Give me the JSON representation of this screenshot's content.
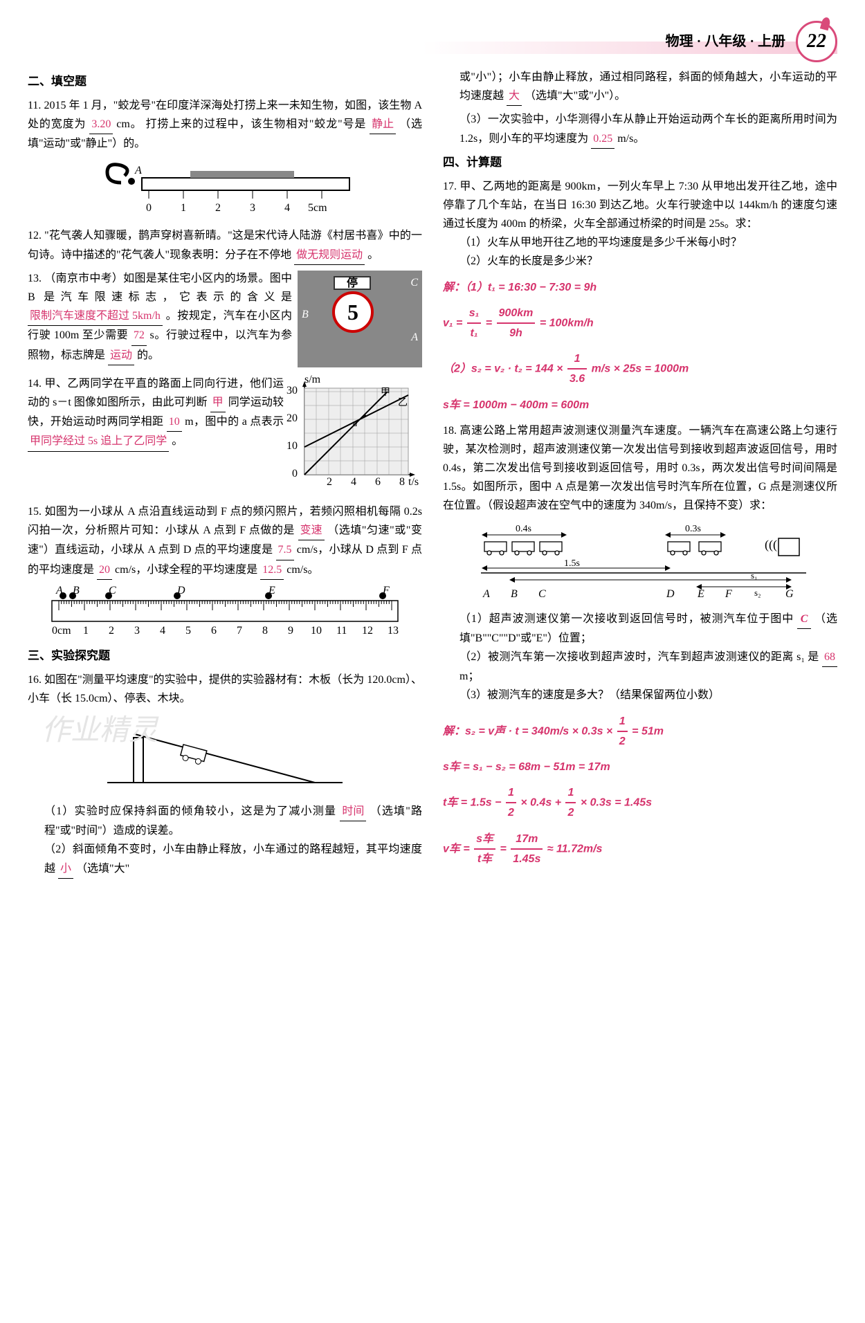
{
  "header": {
    "title": "物理 · 八年级 · 上册",
    "page_num": "22"
  },
  "sections": {
    "fill": "二、填空题",
    "exp": "三、实验探究题",
    "calc": "四、计算题"
  },
  "q11": {
    "text_a": "11. 2015 年 1 月，\"蛟龙号\"在印度洋深海处打捞上来一未知生物，如图，该生物 A 处的宽度为",
    "ans1": "3.20",
    "unit1": " cm。",
    "text_b": "打捞上来的过程中，该生物相对\"蛟龙\"号是",
    "ans2": "静止",
    "text_c": "（选填\"运动\"或\"静止\"）的。",
    "ruler": {
      "ticks": [
        "0",
        "1",
        "2",
        "3",
        "4",
        "5cm"
      ]
    }
  },
  "q12": {
    "text_a": "12. \"花气袭人知骤暖，鹊声穿树喜新晴。\"这是宋代诗人陆游《村居书喜》中的一句诗。诗中描述的\"花气袭人\"现象表明：分子在不停地",
    "ans1": "做无规则运动",
    "text_b": "。"
  },
  "q13": {
    "text_a": "13. （南京市中考）如图是某住宅小区内的场景。图中 B 是汽车限速标志，它表示的含义是",
    "ans1": "限制汽车速度不超过 5km/h",
    "text_b": "。按规定，汽车在小区内行驶 100m 至少需要",
    "ans2": "72",
    "text_c": " s。行驶过程中，以汽车为参照物，标志牌是",
    "ans3": "运动",
    "text_d": "的。",
    "sign_labels": {
      "top": "停",
      "num": "5",
      "C": "C",
      "B": "B",
      "A": "A"
    }
  },
  "q14": {
    "text_a": "14. 甲、乙两同学在平直的路面上同向行进，他们运动的 s－t 图像如图所示，由此可判断",
    "ans1": "甲",
    "text_b": "同学运动较快，开始运动时两同学相距",
    "ans2": "10",
    "text_c": " m，图中的 a 点表示",
    "ans3": "甲同学经过 5s 追上了乙同学",
    "text_d": "。",
    "graph": {
      "y_label": "s/m",
      "x_label": "t/s",
      "y_ticks": [
        "0",
        "10",
        "20",
        "30"
      ],
      "x_ticks": [
        "0",
        "2",
        "4",
        "6",
        "8"
      ],
      "line1": "甲",
      "line2": "乙"
    }
  },
  "q15": {
    "text_a": "15. 如图为一小球从 A 点沿直线运动到 F 点的频闪照片，若频闪照相机每隔 0.2s 闪拍一次，分析照片可知：小球从 A 点到 F 点做的是",
    "ans1": "变速",
    "text_b": "（选填\"匀速\"或\"变速\"）直线运动，小球从 A 点到 D 点的平均速度是",
    "ans2": "7.5",
    "text_c": " cm/s，小球从 D 点到 F 点的平均速度是",
    "ans3": "20",
    "text_d": " cm/s，小球全程的平均速度是",
    "ans4": "12.5",
    "text_e": " cm/s。",
    "ruler": {
      "labels": [
        "A",
        "B",
        "C",
        "D",
        "E",
        "F"
      ],
      "ticks": [
        "0cm",
        "1",
        "2",
        "3",
        "4",
        "5",
        "6",
        "7",
        "8",
        "9",
        "10",
        "11",
        "12",
        "13"
      ]
    }
  },
  "q16": {
    "text_a": "16. 如图在\"测量平均速度\"的实验中，提供的实验器材有：木板（长为 120.0cm）、小车（长 15.0cm）、停表、木块。",
    "p1_a": "（1）实验时应保持斜面的倾角较小，这是为了减小测量",
    "ans1": "时间",
    "p1_b": "（选填\"路程\"或\"时间\"）造成的误差。",
    "p2_a": "（2）斜面倾角不变时，小车由静止释放，小车通过的路程越短，其平均速度越",
    "ans2": "小",
    "p2_b": "（选填\"大\"",
    "p2_c": "或\"小\"）；小车由静止释放，通过相同路程，斜面的倾角越大，小车运动的平均速度越",
    "ans3": "大",
    "p2_d": "（选填\"大\"或\"小\"）。",
    "p3_a": "（3）一次实验中，小华测得小车从静止开始运动两个车长的距离所用时间为 1.2s，则小车的平均速度为",
    "ans4": "0.25",
    "p3_b": " m/s。"
  },
  "q17": {
    "text": "17. 甲、乙两地的距离是 900km，一列火车早上 7:30 从甲地出发开往乙地，途中停靠了几个车站，在当日 16:30 到达乙地。火车行驶途中以 144km/h 的速度匀速通过长度为 400m 的桥梁，火车全部通过桥梁的时间是 25s。求：",
    "p1": "（1）火车从甲地开往乙地的平均速度是多少千米每小时？",
    "p2": "（2）火车的长度是多少米？",
    "sol": {
      "l1_pre": "解：（1）t₁ = 16:30 − 7:30 = 9h",
      "l2_lhs": "v₁ = ",
      "l2_n1": "s₁",
      "l2_d1": "t₁",
      "l2_eq": " = ",
      "l2_n2": "900km",
      "l2_d2": "9h",
      "l2_rhs": " = 100km/h",
      "l3_pre": "（2）s₂ = v₂ · t₂ = 144 × ",
      "l3_n": "1",
      "l3_d": "3.6",
      "l3_suf": "m/s × 25s = 1000m",
      "l4": "s车 = 1000m − 400m = 600m"
    }
  },
  "q18": {
    "text": "18. 高速公路上常用超声波测速仪测量汽车速度。一辆汽车在高速公路上匀速行驶，某次检测时，超声波测速仪第一次发出信号到接收到超声波返回信号，用时 0.4s，第二次发出信号到接收到返回信号，用时 0.3s，两次发出信号时间间隔是 1.5s。如图所示，图中 A 点是第一次发出信号时汽车所在位置，G 点是测速仪所在位置。（假设超声波在空气中的速度为 340m/s，且保持不变）求：",
    "diagram": {
      "t1": "0.4s",
      "t2": "0.3s",
      "t3": "1.5s",
      "s1": "s₁",
      "s2": "s₂",
      "labels": [
        "A",
        "B",
        "C",
        "D",
        "E",
        "F",
        "G"
      ]
    },
    "p1_a": "（1）超声波测速仪第一次接收到返回信号时，被测汽车位于图中",
    "ans1": "C",
    "p1_b": "（选填\"B\"\"C\"\"D\"或\"E\"）位置；",
    "p2_a": "（2）被测汽车第一次接收到超声波时，汽车到超声波测速仪的距离 s₁ 是",
    "ans2": "68",
    "p2_b": " m；",
    "p3": "（3）被测汽车的速度是多大？（结果保留两位小数）",
    "sol": {
      "l1_pre": "解：s₂ = v声 · t = 340m/s × 0.3s × ",
      "l1_n": "1",
      "l1_d": "2",
      "l1_suf": " = 51m",
      "l2": "s车 = s₁ − s₂ = 68m − 51m = 17m",
      "l3_pre": "t车 = 1.5s − ",
      "l3_n1": "1",
      "l3_d1": "2",
      "l3_mid": " × 0.4s + ",
      "l3_n2": "1",
      "l3_d2": "2",
      "l3_suf": " × 0.3s = 1.45s",
      "l4_pre": "v车 = ",
      "l4_n1": "s车",
      "l4_d1": "t车",
      "l4_eq": " = ",
      "l4_n2": "17m",
      "l4_d2": "1.45s",
      "l4_suf": " ≈ 11.72m/s"
    }
  }
}
